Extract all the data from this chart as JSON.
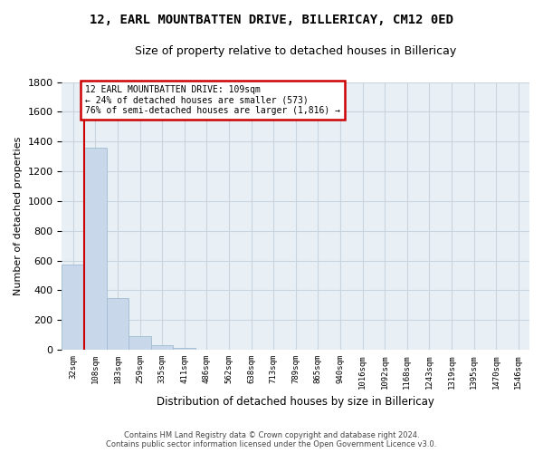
{
  "title": "12, EARL MOUNTBATTEN DRIVE, BILLERICAY, CM12 0ED",
  "subtitle": "Size of property relative to detached houses in Billericay",
  "xlabel": "Distribution of detached houses by size in Billericay",
  "ylabel": "Number of detached properties",
  "bar_color": "#c8d8ea",
  "bar_edge_color": "#a0bcd0",
  "categories": [
    "32sqm",
    "108sqm",
    "183sqm",
    "259sqm",
    "335sqm",
    "411sqm",
    "486sqm",
    "562sqm",
    "638sqm",
    "713sqm",
    "789sqm",
    "865sqm",
    "940sqm",
    "1016sqm",
    "1092sqm",
    "1168sqm",
    "1243sqm",
    "1319sqm",
    "1395sqm",
    "1470sqm",
    "1546sqm"
  ],
  "values": [
    575,
    1360,
    350,
    90,
    30,
    15,
    0,
    0,
    0,
    0,
    0,
    0,
    0,
    0,
    0,
    0,
    0,
    0,
    0,
    0,
    0
  ],
  "ylim": [
    0,
    1800
  ],
  "yticks": [
    0,
    200,
    400,
    600,
    800,
    1000,
    1200,
    1400,
    1600,
    1800
  ],
  "annotation_line1": "12 EARL MOUNTBATTEN DRIVE: 109sqm",
  "annotation_line2": "← 24% of detached houses are smaller (573)",
  "annotation_line3": "76% of semi-detached houses are larger (1,816) →",
  "annotation_box_color": "#ffffff",
  "annotation_edge_color": "#cc0000",
  "footer_line1": "Contains HM Land Registry data © Crown copyright and database right 2024.",
  "footer_line2": "Contains public sector information licensed under the Open Government Licence v3.0.",
  "grid_color": "#c8d4de",
  "background_color": "#e8eff5"
}
